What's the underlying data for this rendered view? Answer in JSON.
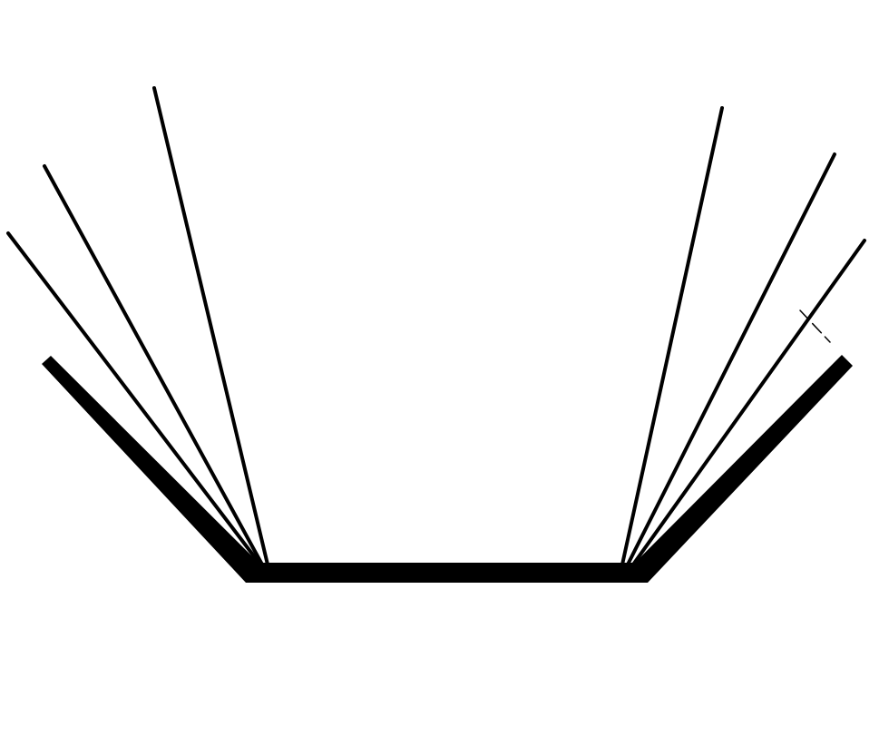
{
  "diagram": {
    "background": "#ffffff",
    "stroke_color": "#000000",
    "open_book": {
      "base": "thick flat base",
      "covers": [
        "left-cover",
        "right-cover"
      ],
      "left_pages": 3,
      "right_pages": 3,
      "ribbon_mark": true
    }
  }
}
